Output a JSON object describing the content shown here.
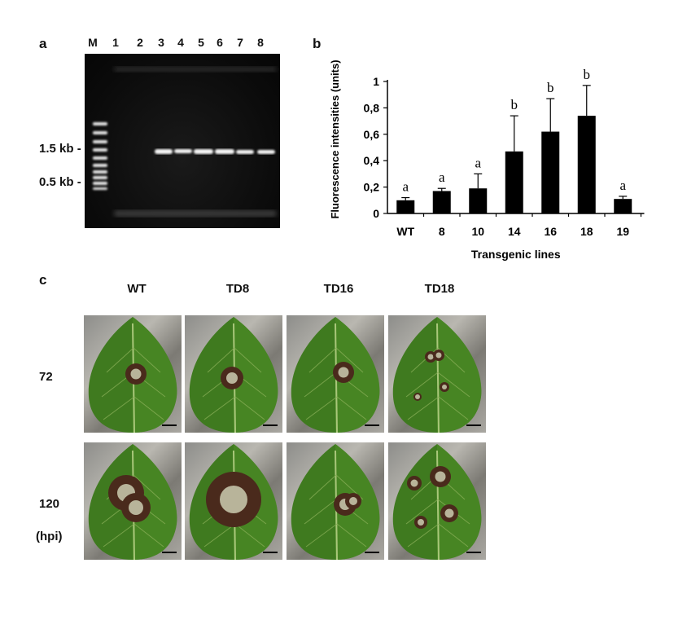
{
  "panel_a": {
    "letter": "a",
    "lanes": [
      "M",
      "1",
      "2",
      "3",
      "4",
      "5",
      "6",
      "7",
      "8"
    ],
    "size_markers": [
      "1.5 kb -",
      "0.5 kb -"
    ]
  },
  "panel_b": {
    "letter": "b"
  },
  "panel_c": {
    "letter": "c",
    "columns": [
      "WT",
      "TD8",
      "TD16",
      "TD18"
    ],
    "rows": [
      "72",
      "120"
    ],
    "unit_label": "(hpi)"
  },
  "chart_data": {
    "type": "bar",
    "categories": [
      "WT",
      "8",
      "10",
      "14",
      "16",
      "18",
      "19"
    ],
    "values": [
      0.1,
      0.17,
      0.19,
      0.47,
      0.62,
      0.74,
      0.11
    ],
    "error_upper": [
      0.02,
      0.02,
      0.11,
      0.27,
      0.25,
      0.23,
      0.02
    ],
    "significance_letters": [
      "a",
      "a",
      "a",
      "b",
      "b",
      "b",
      "a"
    ],
    "xlabel": "Transgenic lines",
    "ylabel": "Fluorescence intensities  (units)",
    "ylim": [
      0,
      1
    ],
    "yticks": [
      "0",
      "0,2",
      "0,4",
      "0,6",
      "0,8",
      "1"
    ],
    "bar_color": "#000000"
  }
}
